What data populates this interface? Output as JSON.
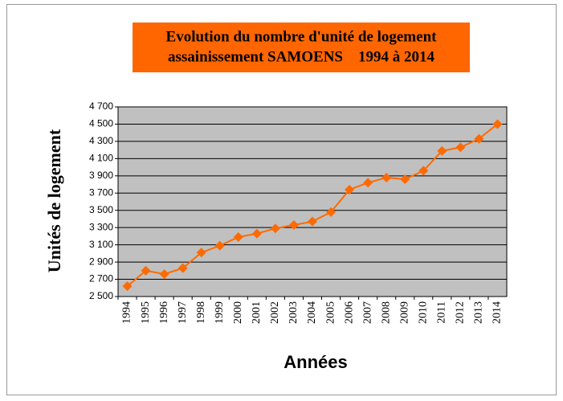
{
  "chart_data": {
    "type": "line",
    "title": [
      "Evolution du nombre d'unité de logement",
      "assainissement SAMOENS    1994 à 2014"
    ],
    "y_label": "Unités de logement",
    "x_label": "Années",
    "categories": [
      "1994",
      "1995",
      "1996",
      "1997",
      "1998",
      "1999",
      "2000",
      "2001",
      "2002",
      "2003",
      "2004",
      "2005",
      "2006",
      "2007",
      "2008",
      "2009",
      "2010",
      "2011",
      "2012",
      "2013",
      "2014"
    ],
    "series": [
      {
        "name": "Unités de logement",
        "color": "#ff6a00",
        "values": [
          2620,
          2800,
          2760,
          2830,
          3010,
          3090,
          3190,
          3230,
          3290,
          3330,
          3370,
          3480,
          3740,
          3820,
          3880,
          3860,
          3960,
          4190,
          4230,
          4330,
          4500
        ]
      }
    ],
    "ylim": [
      2500,
      4700
    ],
    "yticks": [
      {
        "value": 2500,
        "label": "2 500"
      },
      {
        "value": 2700,
        "label": "2 700"
      },
      {
        "value": 2900,
        "label": "2 900"
      },
      {
        "value": 3100,
        "label": "3 100"
      },
      {
        "value": 3300,
        "label": "3 300"
      },
      {
        "value": 3500,
        "label": "3 500"
      },
      {
        "value": 3700,
        "label": "3 700"
      },
      {
        "value": 3900,
        "label": "3 900"
      },
      {
        "value": 4100,
        "label": "4 100"
      },
      {
        "value": 4300,
        "label": "4 300"
      },
      {
        "value": 4500,
        "label": "4 500"
      },
      {
        "value": 4700,
        "label": "4 700"
      }
    ],
    "grid": true,
    "plot_background": "#c0c0c0",
    "title_background": "#ff6600"
  }
}
